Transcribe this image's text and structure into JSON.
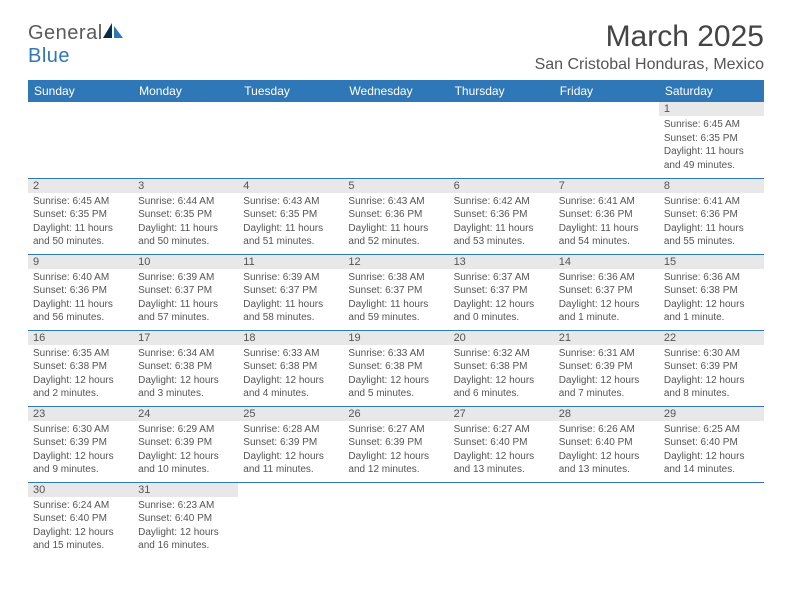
{
  "logo": {
    "text_a": "General",
    "text_b": "Blue"
  },
  "title": "March 2025",
  "location": "San Cristobal Honduras, Mexico",
  "colors": {
    "brand_blue": "#2f78b7",
    "header_gray": "#5a5a5a",
    "cell_head_bg": "#e8e8e8",
    "text": "#555555"
  },
  "weekdays": [
    "Sunday",
    "Monday",
    "Tuesday",
    "Wednesday",
    "Thursday",
    "Friday",
    "Saturday"
  ],
  "weeks": [
    [
      null,
      null,
      null,
      null,
      null,
      null,
      {
        "n": "1",
        "sr": "Sunrise: 6:45 AM",
        "ss": "Sunset: 6:35 PM",
        "dl": "Daylight: 11 hours and 49 minutes."
      }
    ],
    [
      {
        "n": "2",
        "sr": "Sunrise: 6:45 AM",
        "ss": "Sunset: 6:35 PM",
        "dl": "Daylight: 11 hours and 50 minutes."
      },
      {
        "n": "3",
        "sr": "Sunrise: 6:44 AM",
        "ss": "Sunset: 6:35 PM",
        "dl": "Daylight: 11 hours and 50 minutes."
      },
      {
        "n": "4",
        "sr": "Sunrise: 6:43 AM",
        "ss": "Sunset: 6:35 PM",
        "dl": "Daylight: 11 hours and 51 minutes."
      },
      {
        "n": "5",
        "sr": "Sunrise: 6:43 AM",
        "ss": "Sunset: 6:36 PM",
        "dl": "Daylight: 11 hours and 52 minutes."
      },
      {
        "n": "6",
        "sr": "Sunrise: 6:42 AM",
        "ss": "Sunset: 6:36 PM",
        "dl": "Daylight: 11 hours and 53 minutes."
      },
      {
        "n": "7",
        "sr": "Sunrise: 6:41 AM",
        "ss": "Sunset: 6:36 PM",
        "dl": "Daylight: 11 hours and 54 minutes."
      },
      {
        "n": "8",
        "sr": "Sunrise: 6:41 AM",
        "ss": "Sunset: 6:36 PM",
        "dl": "Daylight: 11 hours and 55 minutes."
      }
    ],
    [
      {
        "n": "9",
        "sr": "Sunrise: 6:40 AM",
        "ss": "Sunset: 6:36 PM",
        "dl": "Daylight: 11 hours and 56 minutes."
      },
      {
        "n": "10",
        "sr": "Sunrise: 6:39 AM",
        "ss": "Sunset: 6:37 PM",
        "dl": "Daylight: 11 hours and 57 minutes."
      },
      {
        "n": "11",
        "sr": "Sunrise: 6:39 AM",
        "ss": "Sunset: 6:37 PM",
        "dl": "Daylight: 11 hours and 58 minutes."
      },
      {
        "n": "12",
        "sr": "Sunrise: 6:38 AM",
        "ss": "Sunset: 6:37 PM",
        "dl": "Daylight: 11 hours and 59 minutes."
      },
      {
        "n": "13",
        "sr": "Sunrise: 6:37 AM",
        "ss": "Sunset: 6:37 PM",
        "dl": "Daylight: 12 hours and 0 minutes."
      },
      {
        "n": "14",
        "sr": "Sunrise: 6:36 AM",
        "ss": "Sunset: 6:37 PM",
        "dl": "Daylight: 12 hours and 1 minute."
      },
      {
        "n": "15",
        "sr": "Sunrise: 6:36 AM",
        "ss": "Sunset: 6:38 PM",
        "dl": "Daylight: 12 hours and 1 minute."
      }
    ],
    [
      {
        "n": "16",
        "sr": "Sunrise: 6:35 AM",
        "ss": "Sunset: 6:38 PM",
        "dl": "Daylight: 12 hours and 2 minutes."
      },
      {
        "n": "17",
        "sr": "Sunrise: 6:34 AM",
        "ss": "Sunset: 6:38 PM",
        "dl": "Daylight: 12 hours and 3 minutes."
      },
      {
        "n": "18",
        "sr": "Sunrise: 6:33 AM",
        "ss": "Sunset: 6:38 PM",
        "dl": "Daylight: 12 hours and 4 minutes."
      },
      {
        "n": "19",
        "sr": "Sunrise: 6:33 AM",
        "ss": "Sunset: 6:38 PM",
        "dl": "Daylight: 12 hours and 5 minutes."
      },
      {
        "n": "20",
        "sr": "Sunrise: 6:32 AM",
        "ss": "Sunset: 6:38 PM",
        "dl": "Daylight: 12 hours and 6 minutes."
      },
      {
        "n": "21",
        "sr": "Sunrise: 6:31 AM",
        "ss": "Sunset: 6:39 PM",
        "dl": "Daylight: 12 hours and 7 minutes."
      },
      {
        "n": "22",
        "sr": "Sunrise: 6:30 AM",
        "ss": "Sunset: 6:39 PM",
        "dl": "Daylight: 12 hours and 8 minutes."
      }
    ],
    [
      {
        "n": "23",
        "sr": "Sunrise: 6:30 AM",
        "ss": "Sunset: 6:39 PM",
        "dl": "Daylight: 12 hours and 9 minutes."
      },
      {
        "n": "24",
        "sr": "Sunrise: 6:29 AM",
        "ss": "Sunset: 6:39 PM",
        "dl": "Daylight: 12 hours and 10 minutes."
      },
      {
        "n": "25",
        "sr": "Sunrise: 6:28 AM",
        "ss": "Sunset: 6:39 PM",
        "dl": "Daylight: 12 hours and 11 minutes."
      },
      {
        "n": "26",
        "sr": "Sunrise: 6:27 AM",
        "ss": "Sunset: 6:39 PM",
        "dl": "Daylight: 12 hours and 12 minutes."
      },
      {
        "n": "27",
        "sr": "Sunrise: 6:27 AM",
        "ss": "Sunset: 6:40 PM",
        "dl": "Daylight: 12 hours and 13 minutes."
      },
      {
        "n": "28",
        "sr": "Sunrise: 6:26 AM",
        "ss": "Sunset: 6:40 PM",
        "dl": "Daylight: 12 hours and 13 minutes."
      },
      {
        "n": "29",
        "sr": "Sunrise: 6:25 AM",
        "ss": "Sunset: 6:40 PM",
        "dl": "Daylight: 12 hours and 14 minutes."
      }
    ],
    [
      {
        "n": "30",
        "sr": "Sunrise: 6:24 AM",
        "ss": "Sunset: 6:40 PM",
        "dl": "Daylight: 12 hours and 15 minutes."
      },
      {
        "n": "31",
        "sr": "Sunrise: 6:23 AM",
        "ss": "Sunset: 6:40 PM",
        "dl": "Daylight: 12 hours and 16 minutes."
      },
      null,
      null,
      null,
      null,
      null
    ]
  ]
}
